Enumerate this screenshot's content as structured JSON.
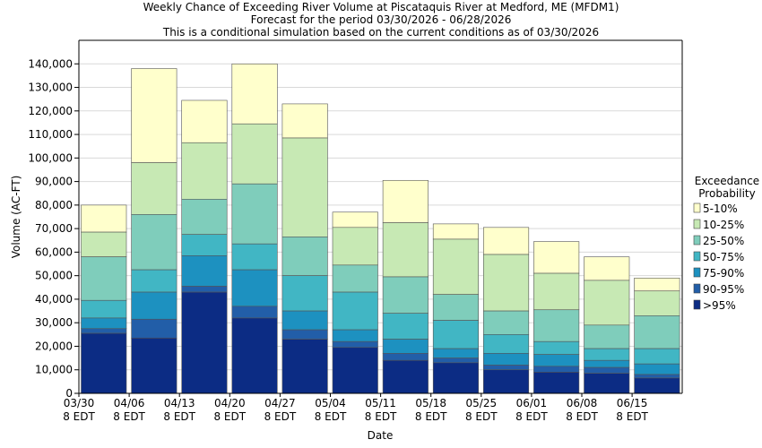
{
  "chart_data": {
    "type": "bar",
    "stacked": true,
    "title": [
      "Weekly Chance of Exceeding River Volume at Piscataquis River at Medford, ME (MFDM1)",
      "Forecast for the period 03/30/2026 - 06/28/2026",
      "This is a conditional simulation based on the current conditions as of 03/30/2026"
    ],
    "xlabel": "Date",
    "ylabel": "Volume (AC-FT)",
    "ylim": [
      0,
      150000
    ],
    "yticks": [
      0,
      10000,
      20000,
      30000,
      40000,
      50000,
      60000,
      70000,
      80000,
      90000,
      100000,
      110000,
      120000,
      130000,
      140000
    ],
    "ytick_labels": [
      "0",
      "10,000",
      "20,000",
      "30,000",
      "40,000",
      "50,000",
      "60,000",
      "70,000",
      "80,000",
      "90,000",
      "100,000",
      "110,000",
      "120,000",
      "130,000",
      "140,000"
    ],
    "xtick_labels": [
      {
        "line1": "03/30",
        "line2": "8 EDT"
      },
      {
        "line1": "04/06",
        "line2": "8 EDT"
      },
      {
        "line1": "04/13",
        "line2": "8 EDT"
      },
      {
        "line1": "04/20",
        "line2": "8 EDT"
      },
      {
        "line1": "04/27",
        "line2": "8 EDT"
      },
      {
        "line1": "05/04",
        "line2": "8 EDT"
      },
      {
        "line1": "05/11",
        "line2": "8 EDT"
      },
      {
        "line1": "05/18",
        "line2": "8 EDT"
      },
      {
        "line1": "05/25",
        "line2": "8 EDT"
      },
      {
        "line1": "06/01",
        "line2": "8 EDT"
      },
      {
        "line1": "06/08",
        "line2": "8 EDT"
      },
      {
        "line1": "06/15",
        "line2": "8 EDT"
      }
    ],
    "legend_title": [
      "Exceedance",
      "Probability"
    ],
    "legend_position": "right",
    "grid": true,
    "band_names": [
      "5-10%",
      "10-25%",
      "25-50%",
      "50-75%",
      "75-90%",
      "90-95%",
      ">95%"
    ],
    "band_colors": [
      "#ffffcc",
      "#c7e9b4",
      "#7fcdbb",
      "#41b6c4",
      "#1d91c0",
      "#225ea8",
      "#0c2c84"
    ],
    "boundaries": [
      [
        80000,
        68500,
        58000,
        39500,
        32000,
        27500,
        25500
      ],
      [
        138000,
        98000,
        76000,
        52500,
        43000,
        31500,
        23500
      ],
      [
        124500,
        106500,
        82500,
        67500,
        58500,
        45500,
        43000
      ],
      [
        140000,
        114500,
        89000,
        63500,
        52500,
        37000,
        32000
      ],
      [
        123000,
        108500,
        66500,
        50000,
        35000,
        27000,
        23000
      ],
      [
        77000,
        70500,
        54500,
        43000,
        27000,
        22000,
        19500
      ],
      [
        90500,
        72500,
        49500,
        34000,
        23000,
        17000,
        14000
      ],
      [
        72000,
        65500,
        42000,
        31000,
        19000,
        15000,
        13000
      ],
      [
        70500,
        59000,
        35000,
        25000,
        17000,
        12000,
        10000
      ],
      [
        64500,
        51000,
        35500,
        22000,
        16500,
        11500,
        9000
      ],
      [
        58000,
        48000,
        29000,
        19000,
        14000,
        11000,
        8500
      ],
      [
        49000,
        43500,
        33000,
        19000,
        12500,
        8000,
        6500
      ]
    ]
  }
}
